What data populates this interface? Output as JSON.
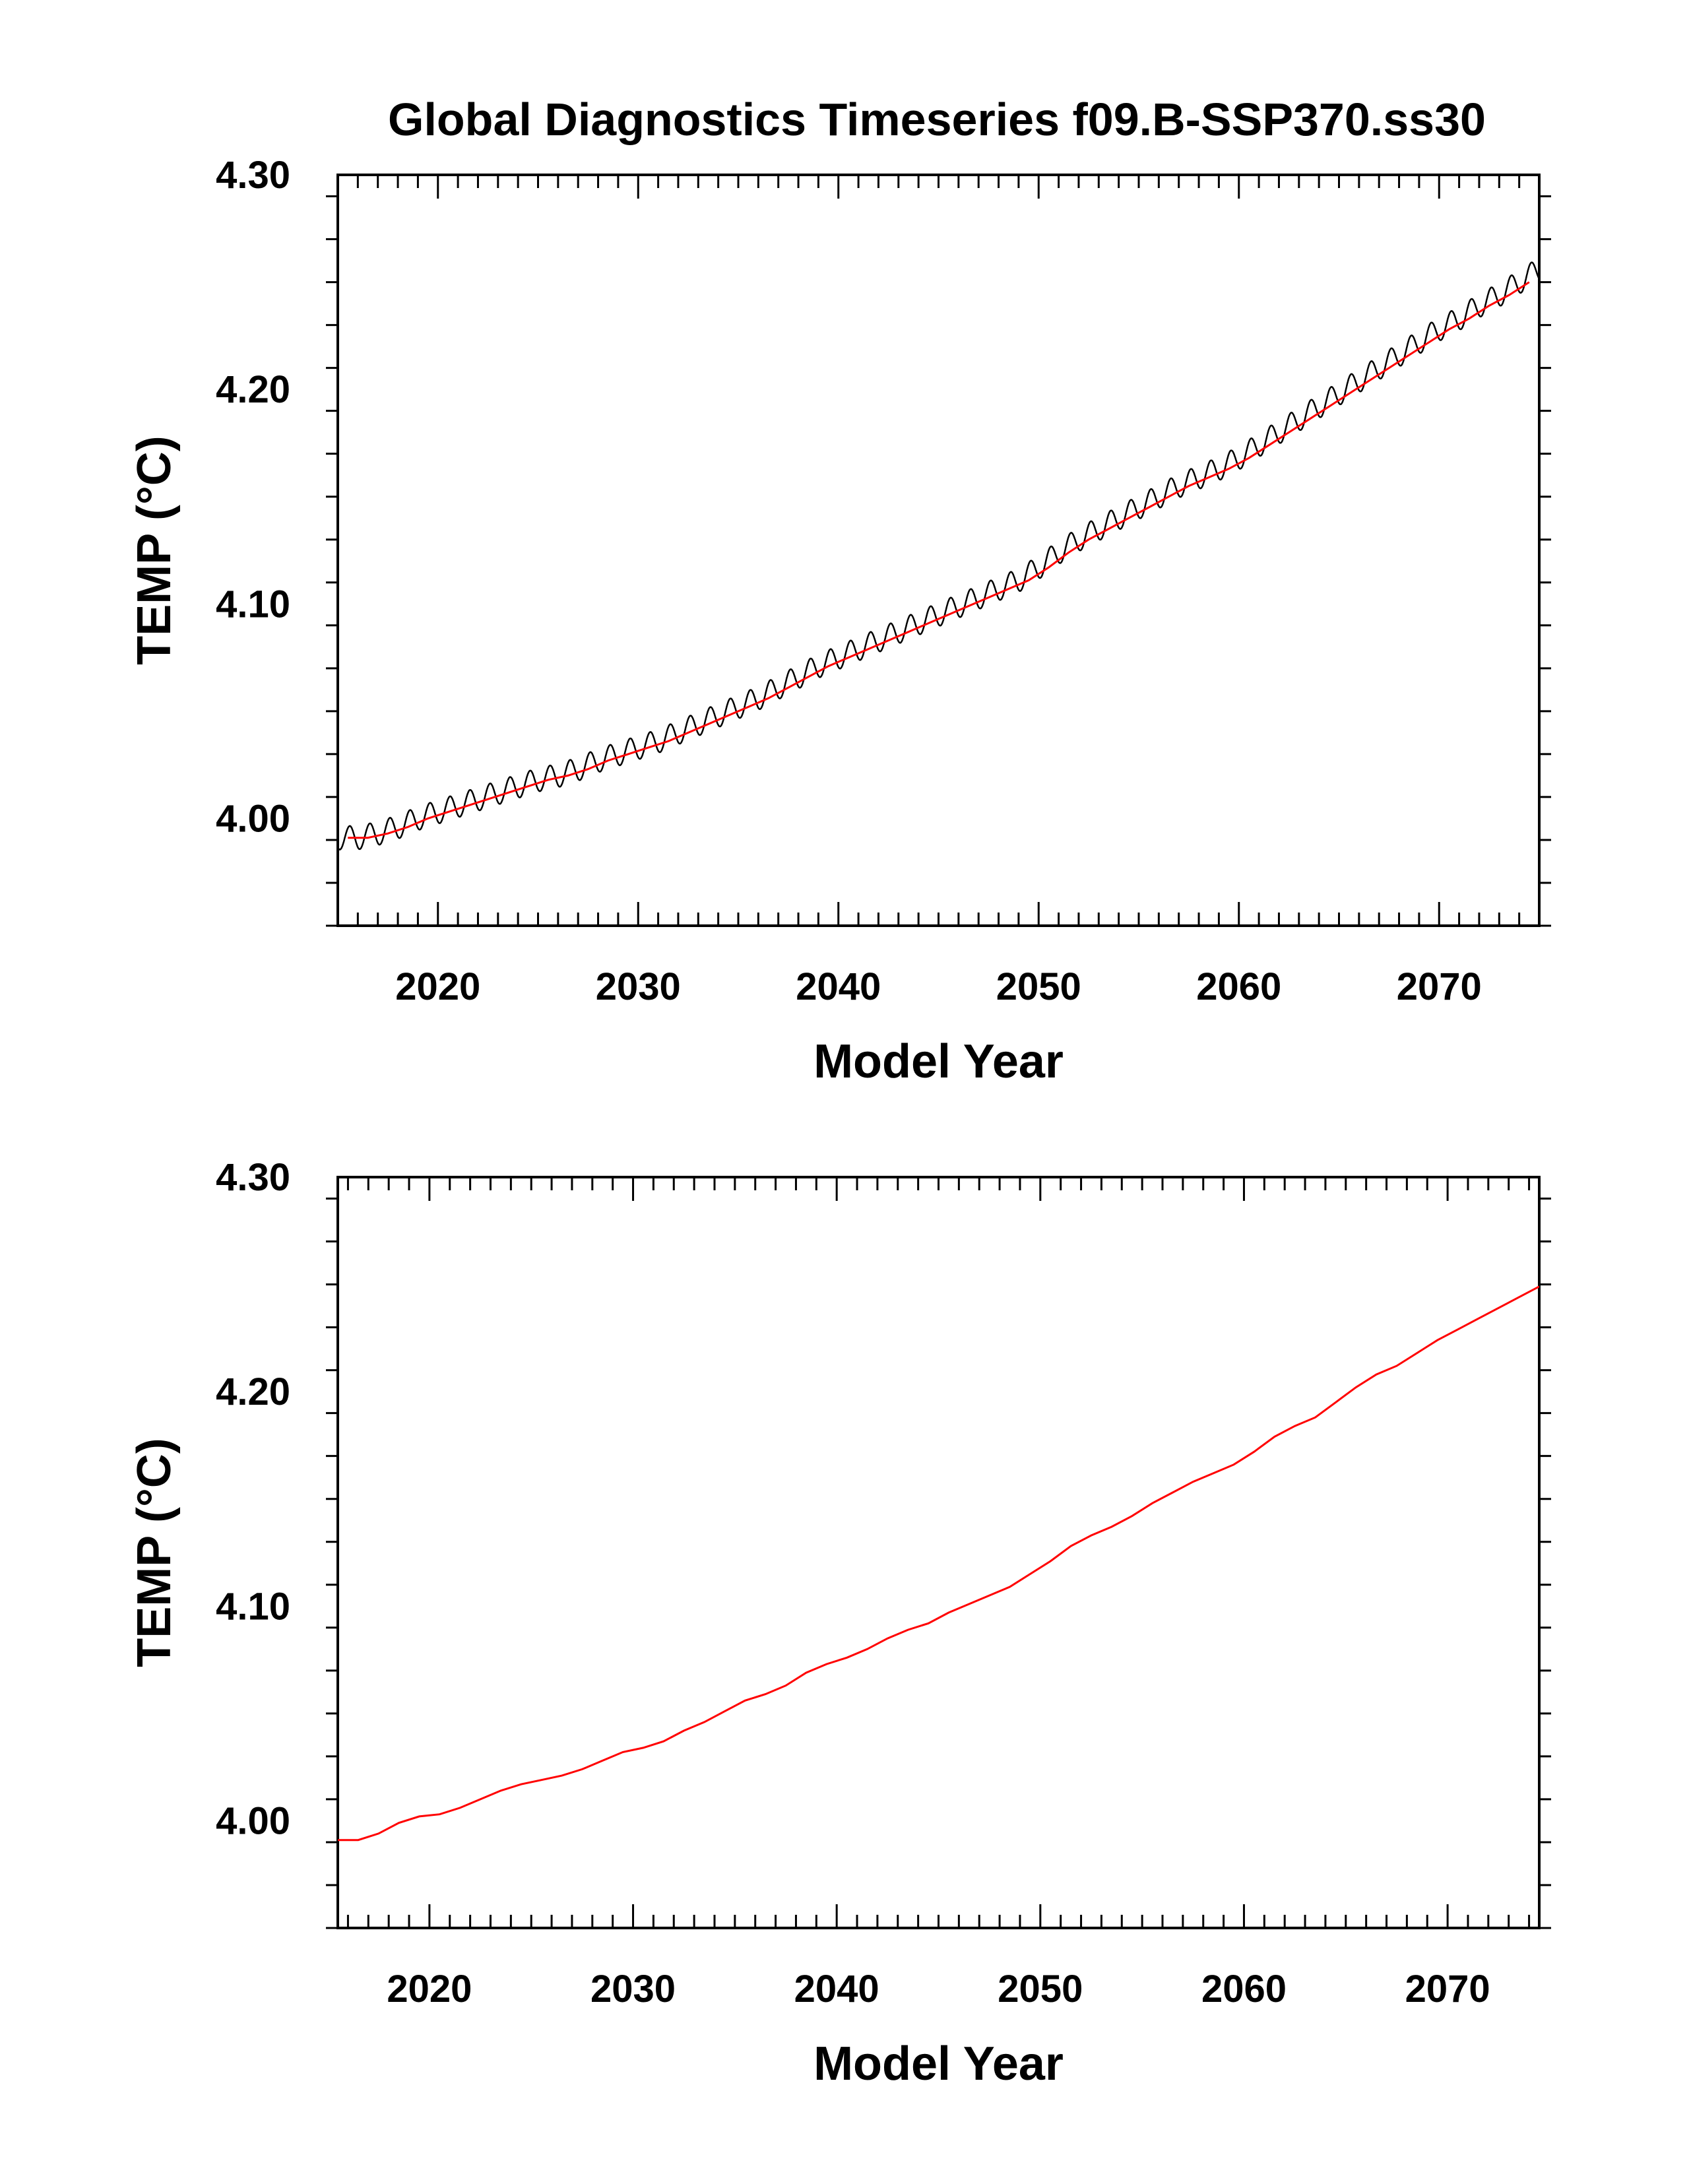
{
  "title": "Global Diagnostics Timeseries f09.B-SSP370.ss30",
  "colors": {
    "monthly": "#000000",
    "annual": "#ff0000",
    "axis": "#000000",
    "background": "#ffffff"
  },
  "chart_data": [
    {
      "type": "line",
      "xlabel": "Model Year",
      "ylabel": "TEMP (°C)",
      "xlim": [
        2015.0,
        2075.0
      ],
      "ylim": [
        3.95,
        4.3
      ],
      "xticks": [
        2020,
        2030,
        2040,
        2050,
        2060,
        2070
      ],
      "xtick_labels": [
        "2020",
        "2030",
        "2040",
        "2050",
        "2060",
        "2070"
      ],
      "yticks": [
        4.0,
        4.1,
        4.2,
        4.3
      ],
      "ytick_labels": [
        "4.00",
        "4.10",
        "4.20",
        "4.30"
      ],
      "grid": false,
      "series": [
        {
          "style": "monthly",
          "seasonal_amplitude": 0.0055,
          "x": [
            2015.0,
            2016,
            2017,
            2018,
            2019,
            2020,
            2021,
            2022,
            2023,
            2024,
            2025,
            2026,
            2027,
            2028,
            2029,
            2030,
            2031,
            2032,
            2033,
            2034,
            2035,
            2036,
            2037,
            2038,
            2039,
            2040,
            2041,
            2042,
            2043,
            2044,
            2045,
            2046,
            2047,
            2048,
            2049,
            2050,
            2051,
            2052,
            2053,
            2054,
            2055,
            2056,
            2057,
            2058,
            2059,
            2060,
            2061,
            2062,
            2063,
            2064,
            2065,
            2066,
            2067,
            2068,
            2069,
            2070,
            2071,
            2072,
            2073,
            2074,
            2075
          ],
          "values": [
            3.991,
            3.991,
            3.993,
            3.996,
            4.0,
            4.003,
            4.006,
            4.009,
            4.012,
            4.015,
            4.018,
            4.02,
            4.023,
            4.027,
            4.03,
            4.033,
            4.036,
            4.04,
            4.044,
            4.048,
            4.052,
            4.056,
            4.061,
            4.066,
            4.071,
            4.075,
            4.079,
            4.083,
            4.087,
            4.091,
            4.095,
            4.099,
            4.103,
            4.107,
            4.111,
            4.117,
            4.124,
            4.13,
            4.135,
            4.14,
            4.145,
            4.15,
            4.155,
            4.159,
            4.163,
            4.168,
            4.174,
            4.18,
            4.186,
            4.192,
            4.198,
            4.204,
            4.21,
            4.216,
            4.222,
            4.228,
            4.233,
            4.239,
            4.244,
            4.25,
            4.256
          ]
        },
        {
          "style": "annual",
          "x": [
            2015.5,
            2016.5,
            2017.5,
            2018.5,
            2019.5,
            2020.5,
            2021.5,
            2022.5,
            2023.5,
            2024.5,
            2025.5,
            2026.5,
            2027.5,
            2028.5,
            2029.5,
            2030.5,
            2031.5,
            2032.5,
            2033.5,
            2034.5,
            2035.5,
            2036.5,
            2037.5,
            2038.5,
            2039.5,
            2040.5,
            2041.5,
            2042.5,
            2043.5,
            2044.5,
            2045.5,
            2046.5,
            2047.5,
            2048.5,
            2049.5,
            2050.5,
            2051.5,
            2052.5,
            2053.5,
            2054.5,
            2055.5,
            2056.5,
            2057.5,
            2058.5,
            2059.5,
            2060.5,
            2061.5,
            2062.5,
            2063.5,
            2064.5,
            2065.5,
            2066.5,
            2067.5,
            2068.5,
            2069.5,
            2070.5,
            2071.5,
            2072.5,
            2073.5,
            2074.5
          ],
          "values": [
            3.991,
            3.991,
            3.993,
            3.996,
            4.0,
            4.003,
            4.006,
            4.009,
            4.012,
            4.015,
            4.018,
            4.02,
            4.023,
            4.027,
            4.03,
            4.033,
            4.036,
            4.04,
            4.044,
            4.048,
            4.052,
            4.056,
            4.061,
            4.066,
            4.071,
            4.075,
            4.079,
            4.083,
            4.087,
            4.091,
            4.095,
            4.099,
            4.103,
            4.107,
            4.111,
            4.117,
            4.124,
            4.13,
            4.135,
            4.14,
            4.145,
            4.15,
            4.155,
            4.159,
            4.163,
            4.168,
            4.174,
            4.18,
            4.186,
            4.192,
            4.198,
            4.204,
            4.21,
            4.216,
            4.222,
            4.228,
            4.233,
            4.239,
            4.244,
            4.25
          ]
        }
      ]
    },
    {
      "type": "line",
      "xlabel": "Model Year",
      "ylabel": "TEMP (°C)",
      "xlim": [
        2015.5,
        2074.5
      ],
      "ylim": [
        3.95,
        4.3
      ],
      "xticks": [
        2020,
        2030,
        2040,
        2050,
        2060,
        2070
      ],
      "xtick_labels": [
        "2020",
        "2030",
        "2040",
        "2050",
        "2060",
        "2070"
      ],
      "yticks": [
        4.0,
        4.1,
        4.2,
        4.3
      ],
      "ytick_labels": [
        "4.00",
        "4.10",
        "4.20",
        "4.30"
      ],
      "grid": false,
      "series": [
        {
          "style": "annual",
          "x": [
            2015.5,
            2016.5,
            2017.5,
            2018.5,
            2019.5,
            2020.5,
            2021.5,
            2022.5,
            2023.5,
            2024.5,
            2025.5,
            2026.5,
            2027.5,
            2028.5,
            2029.5,
            2030.5,
            2031.5,
            2032.5,
            2033.5,
            2034.5,
            2035.5,
            2036.5,
            2037.5,
            2038.5,
            2039.5,
            2040.5,
            2041.5,
            2042.5,
            2043.5,
            2044.5,
            2045.5,
            2046.5,
            2047.5,
            2048.5,
            2049.5,
            2050.5,
            2051.5,
            2052.5,
            2053.5,
            2054.5,
            2055.5,
            2056.5,
            2057.5,
            2058.5,
            2059.5,
            2060.5,
            2061.5,
            2062.5,
            2063.5,
            2064.5,
            2065.5,
            2066.5,
            2067.5,
            2068.5,
            2069.5,
            2070.5,
            2071.5,
            2072.5,
            2073.5,
            2074.5
          ],
          "values": [
            3.991,
            3.991,
            3.994,
            3.999,
            4.002,
            4.003,
            4.006,
            4.01,
            4.014,
            4.017,
            4.019,
            4.021,
            4.024,
            4.028,
            4.032,
            4.034,
            4.037,
            4.042,
            4.046,
            4.051,
            4.056,
            4.059,
            4.063,
            4.069,
            4.073,
            4.076,
            4.08,
            4.085,
            4.089,
            4.092,
            4.097,
            4.101,
            4.105,
            4.109,
            4.115,
            4.121,
            4.128,
            4.133,
            4.137,
            4.142,
            4.148,
            4.153,
            4.158,
            4.162,
            4.166,
            4.172,
            4.179,
            4.184,
            4.188,
            4.195,
            4.202,
            4.208,
            4.212,
            4.218,
            4.224,
            4.229,
            4.234,
            4.239,
            4.244,
            4.249
          ]
        }
      ]
    }
  ]
}
